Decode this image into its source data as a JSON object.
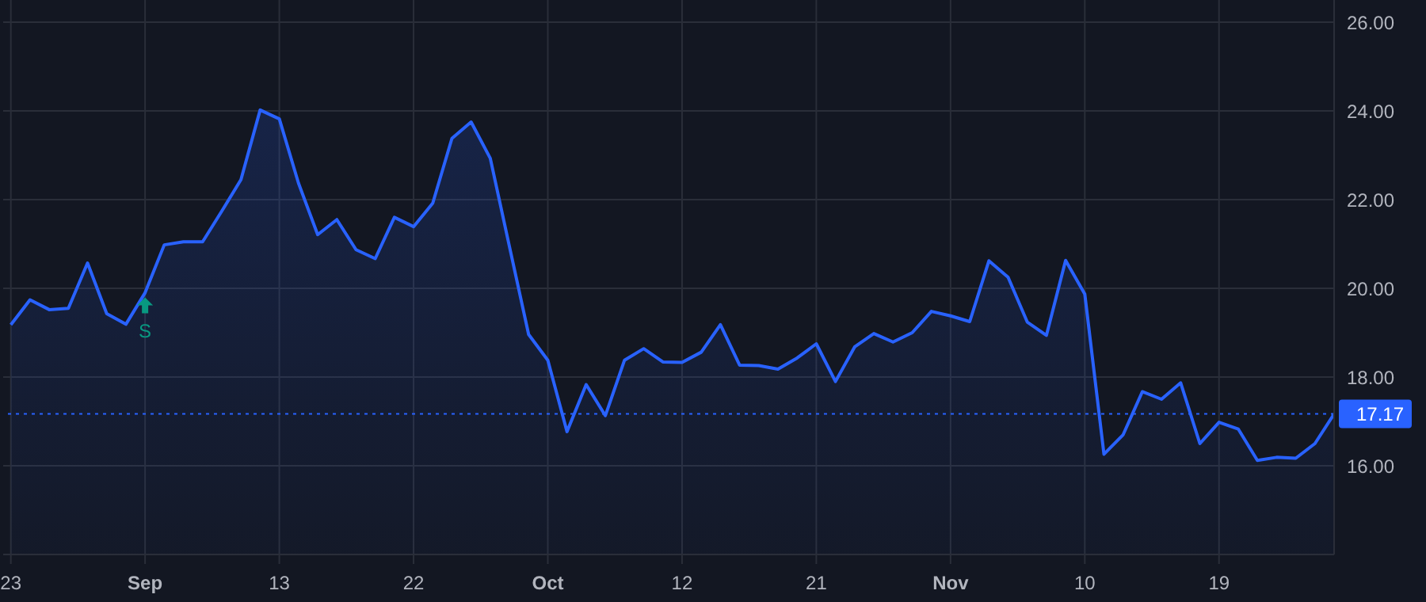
{
  "chart_data": {
    "type": "area",
    "color": "#2962ff",
    "categories": [
      "23",
      null,
      null,
      null,
      null,
      null,
      null,
      "Sep",
      null,
      null,
      null,
      null,
      null,
      null,
      "13",
      null,
      null,
      null,
      null,
      null,
      null,
      "22",
      null,
      null,
      null,
      null,
      null,
      null,
      "Oct",
      null,
      null,
      null,
      null,
      null,
      null,
      "12",
      null,
      null,
      null,
      null,
      null,
      null,
      "21",
      null,
      null,
      null,
      null,
      null,
      null,
      "Nov",
      null,
      null,
      null,
      null,
      null,
      null,
      "10",
      null,
      null,
      null,
      null,
      null,
      null,
      "19",
      null,
      null,
      null,
      null,
      null,
      null
    ],
    "values": [
      19.18,
      19.74,
      19.52,
      19.55,
      20.57,
      19.43,
      19.19,
      19.9,
      20.98,
      21.05,
      21.05,
      21.74,
      22.45,
      24.02,
      23.82,
      22.37,
      21.21,
      21.55,
      20.87,
      20.67,
      21.6,
      21.39,
      21.92,
      23.38,
      23.75,
      22.93,
      20.94,
      18.96,
      18.38,
      16.77,
      17.83,
      17.13,
      18.38,
      18.64,
      18.34,
      18.33,
      18.56,
      19.18,
      18.27,
      18.26,
      18.18,
      18.43,
      18.75,
      17.9,
      18.68,
      18.98,
      18.79,
      19.0,
      19.48,
      19.38,
      19.25,
      20.62,
      20.25,
      19.24,
      18.94,
      20.63,
      19.87,
      16.26,
      16.7,
      17.67,
      17.5,
      17.87,
      16.5,
      16.98,
      16.83,
      16.12,
      16.19,
      16.17,
      16.5,
      17.17
    ],
    "ylim": [
      14,
      26.5
    ],
    "yticks": [
      {
        "value": 16,
        "label": "16.00"
      },
      {
        "value": 18,
        "label": "18.00"
      },
      {
        "value": 20,
        "label": "20.00"
      },
      {
        "value": 22,
        "label": "22.00"
      },
      {
        "value": 24,
        "label": "24.00"
      },
      {
        "value": 26,
        "label": "26.00"
      }
    ],
    "grid": true,
    "ref_lines": [
      {
        "axis": "y",
        "value": 17.17,
        "label": "17.17",
        "color": "#2962ff",
        "line_style": "dotted"
      }
    ],
    "annotations": [
      {
        "text": "S",
        "x": "Sep",
        "y": 19.9
      }
    ]
  }
}
